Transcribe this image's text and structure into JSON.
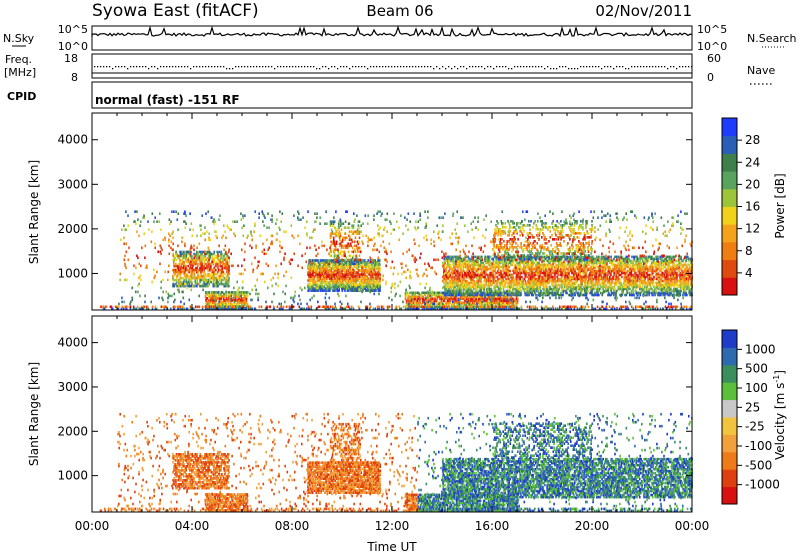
{
  "header": {
    "station": "Syowa East (fitACF)",
    "beam": "Beam 06",
    "date": "02/Nov/2011"
  },
  "top_panels": {
    "nsky_label": "N.Sky",
    "nsky_ticks": [
      "10^5",
      "10^0"
    ],
    "nsearch_label": "N.Search",
    "nsearch_ticks": [
      "10^5",
      "10^0"
    ],
    "freq_label": "Freq.",
    "freq_unit": "[MHz]",
    "freq_ticks": [
      "18",
      "8"
    ],
    "nave_label": "Nave",
    "nave_ticks": [
      "60",
      "0"
    ],
    "cpid_label": "CPID",
    "cpid_text": "normal (fast) -151 RF"
  },
  "chart_data": [
    {
      "type": "heatmap",
      "name": "power",
      "ylabel": "Slant Range [km]",
      "ylim": [
        180,
        4600
      ],
      "yticks": [
        "1000",
        "2000",
        "3000",
        "4000"
      ],
      "xlim": [
        0,
        24
      ],
      "colorbar": {
        "label": "Power [dB]",
        "ticks": [
          "4",
          "8",
          "12",
          "16",
          "20",
          "24",
          "28"
        ],
        "colors": [
          "#1f3bff",
          "#2a5fb8",
          "#3e7f4a",
          "#5aa35e",
          "#9cc53a",
          "#f0d21a",
          "#f3a21a",
          "#ef7d12",
          "#e04a10",
          "#d81010"
        ]
      }
    },
    {
      "type": "heatmap",
      "name": "velocity",
      "ylabel": "Slant Range [km]",
      "ylim": [
        180,
        4600
      ],
      "yticks": [
        "1000",
        "2000",
        "3000",
        "4000"
      ],
      "xlim": [
        0,
        24
      ],
      "xticks": [
        "00:00",
        "04:00",
        "08:00",
        "12:00",
        "16:00",
        "20:00",
        "00:00"
      ],
      "xlabel": "Time UT",
      "colorbar": {
        "label": "Velocity [m s",
        "label_sup": "-1",
        "label_end": "]",
        "ticks": [
          "1000",
          "500",
          "100",
          "25",
          "-25",
          "-100",
          "-500",
          "-1000"
        ],
        "colors": [
          "#1e3cc8",
          "#2e6ab0",
          "#3a8f5c",
          "#5bbf3c",
          "#c8c8c8",
          "#f2c33c",
          "#f2a03c",
          "#ef7a18",
          "#e04010",
          "#d81010"
        ]
      }
    }
  ]
}
